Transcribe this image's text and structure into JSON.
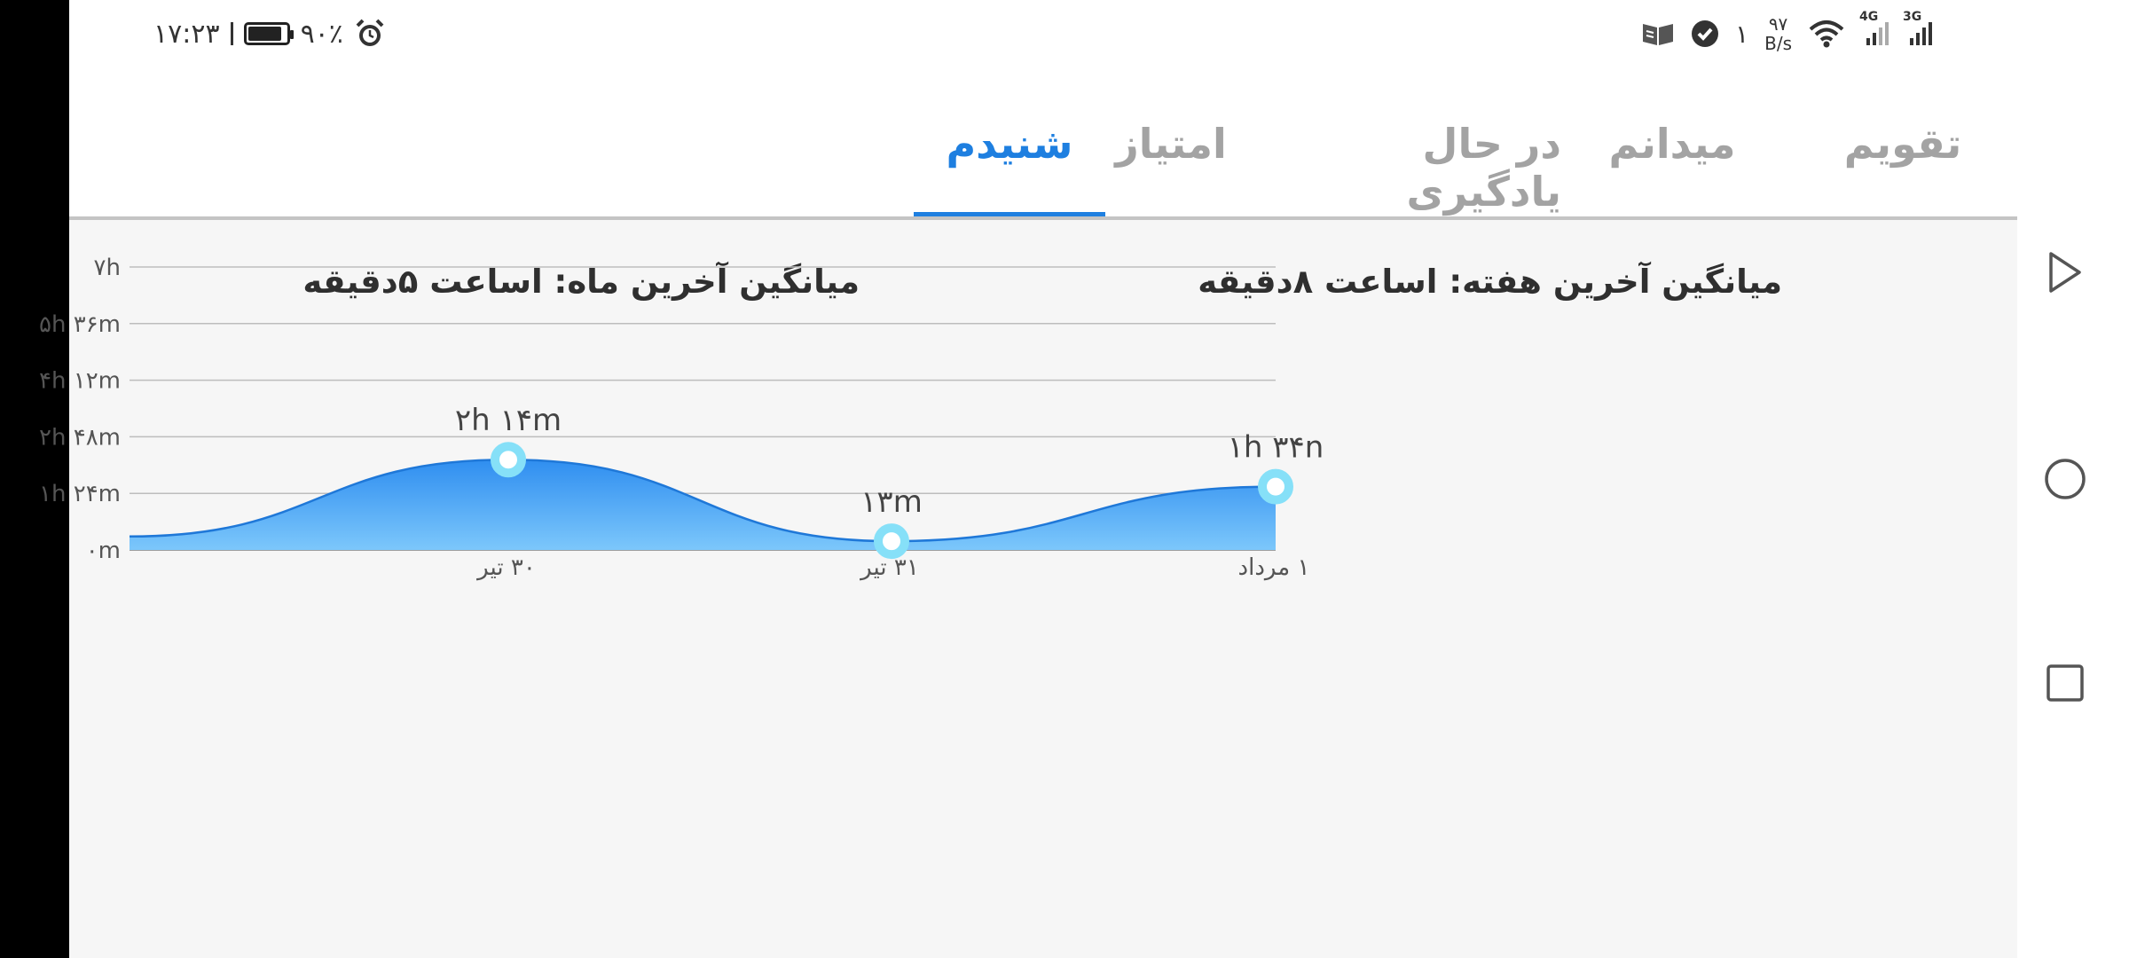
{
  "status_bar": {
    "time": "۱۷:۲۳",
    "battery_percent": "۹۰٪",
    "battery_level": 0.9,
    "notification_count": "۱",
    "net_speed_value": "۹۷",
    "net_speed_unit": "B/s",
    "signal_1_label": "4G",
    "signal_2_label": "3G",
    "icons": [
      "alarm-icon",
      "battery-icon",
      "book-icon",
      "shield-check-icon",
      "wifi-icon",
      "signal-icon"
    ]
  },
  "tabs": [
    {
      "label": "تقویم",
      "active": false
    },
    {
      "label": "میدانم",
      "active": false
    },
    {
      "label": "در حال یادگیری",
      "active": false
    },
    {
      "label": "امتیاز",
      "active": false
    },
    {
      "label": "شنیدم",
      "active": true
    }
  ],
  "summary": {
    "weekly_average": "میانگین آخرین هفته: اساعت  ۸دقیقه",
    "monthly_average": "میانگین آخرین ماه: اساعت  ۵دقیقه"
  },
  "chart_data": {
    "type": "area",
    "y_tick_labels": [
      "۰m",
      "۱h ۲۴m",
      "۲h ۴۸m",
      "۴h ۱۲m",
      "۵h ۳۶m",
      "۷h"
    ],
    "ylim_minutes": [
      0,
      420
    ],
    "grid": true,
    "x_tick_labels": [
      "۳۰ تیر",
      "۳۱ تیر",
      "۱ مرداد"
    ],
    "points": [
      {
        "x_label": "۳۰ تیر",
        "value_minutes": 134,
        "data_label": "۲h ۱۴m"
      },
      {
        "x_label": "۳۱ تیر",
        "value_minutes": 13,
        "data_label": "۱۳m"
      },
      {
        "x_label": "۱ مرداد",
        "value_minutes": 94,
        "data_label": "۱h ۳۴n"
      }
    ],
    "start_value_minutes": 20,
    "fill_color_top": "#2f8ef0",
    "fill_color_bottom": "#7cc7fb",
    "marker_color": "#86e0f8"
  },
  "colors": {
    "accent": "#1e7fe0",
    "inactive_tab": "#a3a3a3"
  },
  "nav_icons": [
    "back-triangle-icon",
    "home-circle-icon",
    "recents-square-icon"
  ]
}
